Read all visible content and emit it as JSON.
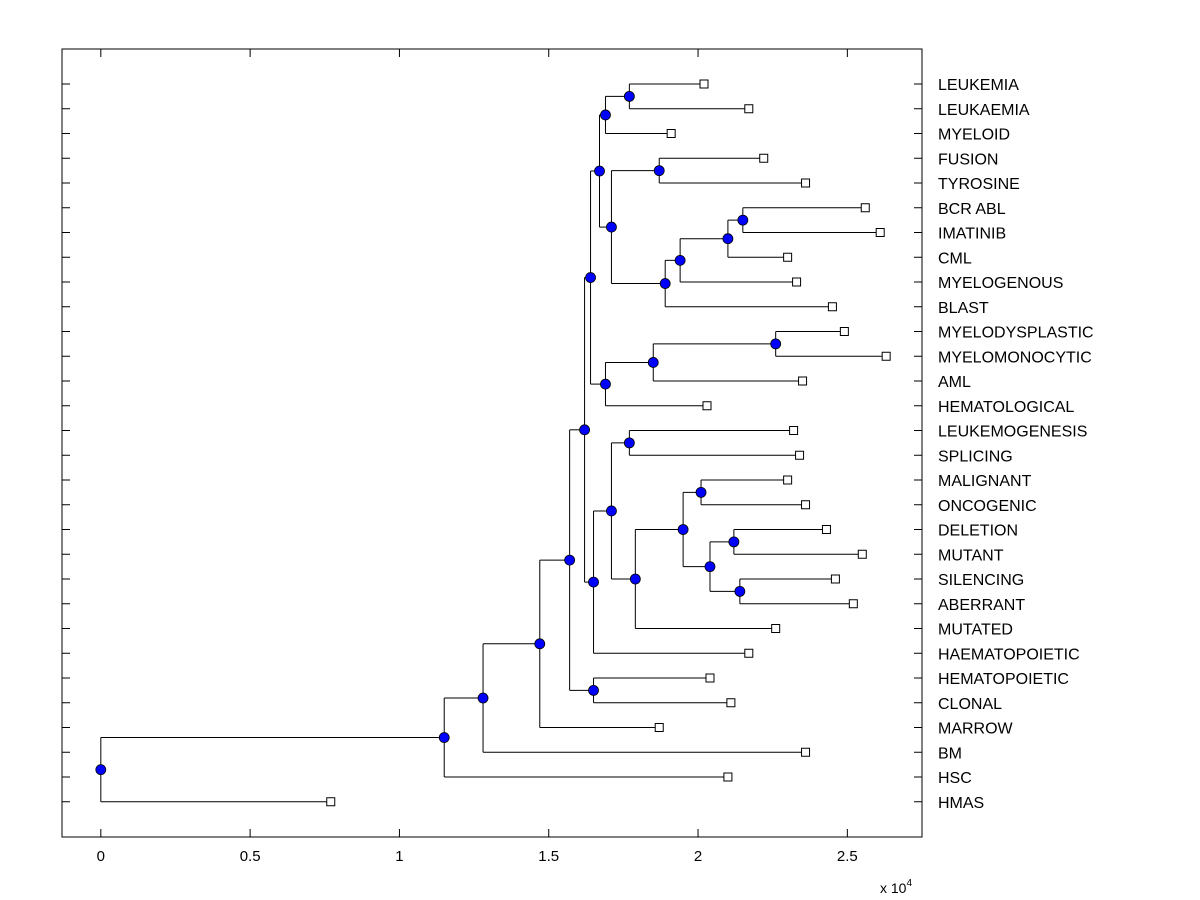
{
  "chart_data": {
    "type": "dendrogram",
    "title": "",
    "xlabel": "",
    "ylabel": "",
    "x_multiplier_label": {
      "base": "x 10",
      "exponent": "4"
    },
    "xlim": [
      -0.13,
      2.75
    ],
    "x_ticks": [
      0,
      0.5,
      1,
      1.5,
      2,
      2.5
    ],
    "x_tick_labels": [
      "0",
      "0.5",
      "1",
      "1.5",
      "2",
      "2.5"
    ],
    "grid": false,
    "colors": {
      "internal_node": "#0000ff",
      "leaf_node": "#ffffff",
      "line": "#000000"
    },
    "leaves": [
      {
        "id": "LEUKEMIA",
        "label": "LEUKEMIA",
        "x": 2.02
      },
      {
        "id": "LEUKAEMIA",
        "label": "LEUKAEMIA",
        "x": 2.17
      },
      {
        "id": "MYELOID",
        "label": "MYELOID",
        "x": 1.91
      },
      {
        "id": "FUSION",
        "label": "FUSION",
        "x": 2.22
      },
      {
        "id": "TYROSINE",
        "label": "TYROSINE",
        "x": 2.36
      },
      {
        "id": "BCR ABL",
        "label": "BCR ABL",
        "x": 2.56
      },
      {
        "id": "IMATINIB",
        "label": "IMATINIB",
        "x": 2.61
      },
      {
        "id": "CML",
        "label": "CML",
        "x": 2.3
      },
      {
        "id": "MYELOGENOUS",
        "label": "MYELOGENOUS",
        "x": 2.33
      },
      {
        "id": "BLAST",
        "label": "BLAST",
        "x": 2.45
      },
      {
        "id": "MYELODYSPLASTIC",
        "label": "MYELODYSPLASTIC",
        "x": 2.49
      },
      {
        "id": "MYELOMONOCYTIC",
        "label": "MYELOMONOCYTIC",
        "x": 2.63
      },
      {
        "id": "AML",
        "label": "AML",
        "x": 2.35
      },
      {
        "id": "HEMATOLOGICAL",
        "label": "HEMATOLOGICAL",
        "x": 2.03
      },
      {
        "id": "LEUKEMOGENESIS",
        "label": "LEUKEMOGENESIS",
        "x": 2.32
      },
      {
        "id": "SPLICING",
        "label": "SPLICING",
        "x": 2.34
      },
      {
        "id": "MALIGNANT",
        "label": "MALIGNANT",
        "x": 2.3
      },
      {
        "id": "ONCOGENIC",
        "label": "ONCOGENIC",
        "x": 2.36
      },
      {
        "id": "DELETION",
        "label": "DELETION",
        "x": 2.43
      },
      {
        "id": "MUTANT",
        "label": "MUTANT",
        "x": 2.55
      },
      {
        "id": "SILENCING",
        "label": "SILENCING",
        "x": 2.46
      },
      {
        "id": "ABERRANT",
        "label": "ABERRANT",
        "x": 2.52
      },
      {
        "id": "MUTATED",
        "label": "MUTATED",
        "x": 2.26
      },
      {
        "id": "HAEMATOPOIETIC",
        "label": "HAEMATOPOIETIC",
        "x": 2.17
      },
      {
        "id": "HEMATOPOIETIC",
        "label": "HEMATOPOIETIC",
        "x": 2.04
      },
      {
        "id": "CLONAL",
        "label": "CLONAL",
        "x": 2.11
      },
      {
        "id": "MARROW",
        "label": "MARROW",
        "x": 1.87
      },
      {
        "id": "BM",
        "label": "BM",
        "x": 2.36
      },
      {
        "id": "HSC",
        "label": "HSC",
        "x": 2.1
      },
      {
        "id": "HMAS",
        "label": "HMAS",
        "x": 0.77
      }
    ],
    "internal_nodes": [
      {
        "id": "n1",
        "x": 1.77,
        "children": [
          "LEUKEMIA",
          "LEUKAEMIA"
        ]
      },
      {
        "id": "n2",
        "x": 1.69,
        "children": [
          "n1",
          "MYELOID"
        ]
      },
      {
        "id": "n3",
        "x": 1.87,
        "children": [
          "FUSION",
          "TYROSINE"
        ]
      },
      {
        "id": "n4",
        "x": 2.15,
        "children": [
          "BCR ABL",
          "IMATINIB"
        ]
      },
      {
        "id": "n5",
        "x": 2.1,
        "children": [
          "n4",
          "CML"
        ]
      },
      {
        "id": "n6",
        "x": 1.94,
        "children": [
          "n5",
          "MYELOGENOUS"
        ]
      },
      {
        "id": "n7",
        "x": 1.89,
        "children": [
          "n6",
          "BLAST"
        ]
      },
      {
        "id": "n8",
        "x": 1.71,
        "children": [
          "n3",
          "n7"
        ]
      },
      {
        "id": "n9",
        "x": 1.67,
        "children": [
          "n2",
          "n8"
        ]
      },
      {
        "id": "n10",
        "x": 2.26,
        "children": [
          "MYELODYSPLASTIC",
          "MYELOMONOCYTIC"
        ]
      },
      {
        "id": "n11",
        "x": 1.85,
        "children": [
          "n10",
          "AML"
        ]
      },
      {
        "id": "n12",
        "x": 1.69,
        "children": [
          "n11",
          "HEMATOLOGICAL"
        ]
      },
      {
        "id": "n13",
        "x": 1.64,
        "children": [
          "n9",
          "n12"
        ]
      },
      {
        "id": "n14",
        "x": 1.77,
        "children": [
          "LEUKEMOGENESIS",
          "SPLICING"
        ]
      },
      {
        "id": "n15",
        "x": 2.01,
        "children": [
          "MALIGNANT",
          "ONCOGENIC"
        ]
      },
      {
        "id": "n16",
        "x": 2.12,
        "children": [
          "DELETION",
          "MUTANT"
        ]
      },
      {
        "id": "n17",
        "x": 2.14,
        "children": [
          "SILENCING",
          "ABERRANT"
        ]
      },
      {
        "id": "n18",
        "x": 2.04,
        "children": [
          "n16",
          "n17"
        ]
      },
      {
        "id": "n19",
        "x": 1.95,
        "children": [
          "n15",
          "n18"
        ]
      },
      {
        "id": "n20",
        "x": 1.79,
        "children": [
          "n19",
          "MUTATED"
        ]
      },
      {
        "id": "n21",
        "x": 1.71,
        "children": [
          "n14",
          "n20"
        ]
      },
      {
        "id": "n22",
        "x": 1.65,
        "children": [
          "n21",
          "HAEMATOPOIETIC"
        ]
      },
      {
        "id": "n23",
        "x": 1.62,
        "children": [
          "n13",
          "n22"
        ]
      },
      {
        "id": "n24",
        "x": 1.65,
        "children": [
          "HEMATOPOIETIC",
          "CLONAL"
        ]
      },
      {
        "id": "n25",
        "x": 1.57,
        "children": [
          "n23",
          "n24"
        ]
      },
      {
        "id": "n26",
        "x": 1.47,
        "children": [
          "n25",
          "MARROW"
        ]
      },
      {
        "id": "n27",
        "x": 1.28,
        "children": [
          "n26",
          "BM"
        ]
      },
      {
        "id": "n28",
        "x": 1.15,
        "children": [
          "n27",
          "HSC"
        ]
      },
      {
        "id": "n29",
        "x": 0.0,
        "children": [
          "n28",
          "HMAS"
        ]
      }
    ]
  }
}
